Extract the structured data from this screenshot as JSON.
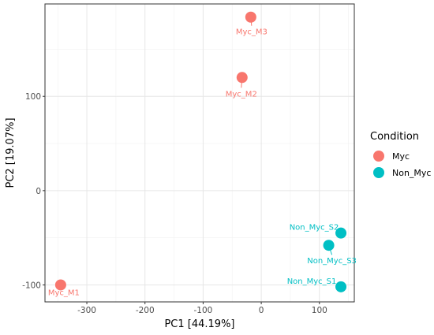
{
  "chart_data": {
    "type": "scatter",
    "title": "",
    "xlabel": "PC1 [44.19%]",
    "ylabel": "PC2 [19.07%]",
    "xlim": [
      -372,
      160
    ],
    "ylim": [
      -118,
      198
    ],
    "xticks": [
      -300,
      -200,
      -100,
      0,
      100
    ],
    "yticks": [
      -100,
      0,
      100
    ],
    "grid": true,
    "legend": {
      "title": "Condition",
      "placement": "right"
    },
    "series": [
      {
        "name": "Myc",
        "color": "#F8766D",
        "points": [
          {
            "label": "Myc_M3",
            "x": -18,
            "y": 184
          },
          {
            "label": "Myc_M2",
            "x": -33,
            "y": 120
          },
          {
            "label": "Myc_M1",
            "x": -345,
            "y": -100
          }
        ]
      },
      {
        "name": "Non_Myc",
        "color": "#00BFC4",
        "points": [
          {
            "label": "Non_Myc_S2",
            "x": 137,
            "y": -45
          },
          {
            "label": "Non_Myc_S3",
            "x": 116,
            "y": -58
          },
          {
            "label": "Non_Myc_S1",
            "x": 137,
            "y": -102
          }
        ]
      }
    ]
  }
}
